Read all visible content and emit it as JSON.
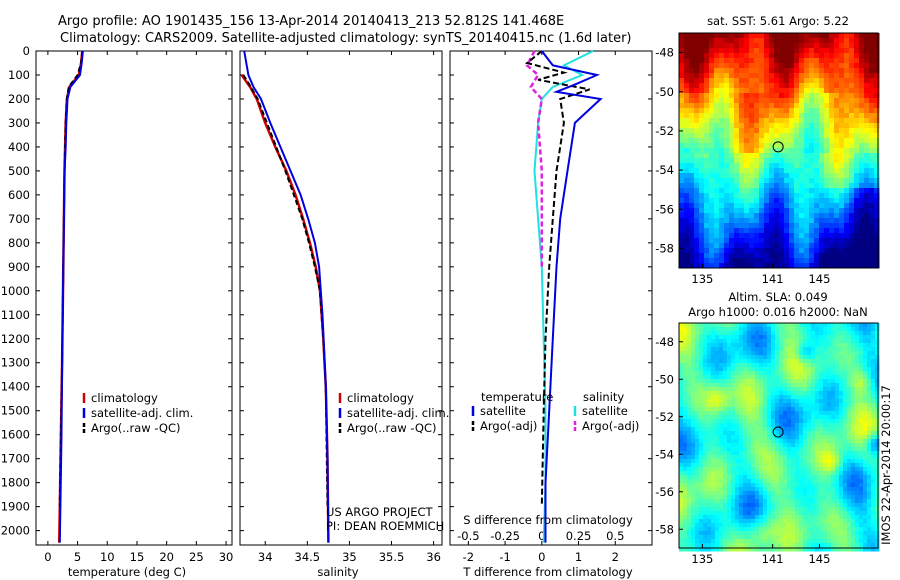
{
  "header": {
    "line1": "Argo profile: AO 1901435_156 13-Apr-2014 20140413_213 52.812S 141.468E",
    "line2": "Climatology: CARS2009. Satellite-adjusted climatology: synTS_20140415.nc (1.6d later)"
  },
  "colors": {
    "climatology": "#d00000",
    "satellite": "#0000e0",
    "argo": "#000000",
    "satellite_salinity": "#20e0e0",
    "argo_salinity": "#e020e0"
  },
  "chart_data": [
    {
      "type": "line",
      "id": "temperature",
      "xlabel": "temperature (deg C)",
      "ylabel": "",
      "xlim": [
        -2,
        31
      ],
      "ylim": [
        2060,
        0
      ],
      "xticks": [
        0,
        5,
        10,
        15,
        20,
        25,
        30
      ],
      "yticks": [
        0,
        100,
        200,
        300,
        400,
        500,
        600,
        700,
        800,
        900,
        1000,
        1100,
        1200,
        1300,
        1400,
        1500,
        1600,
        1700,
        1800,
        1900,
        2000
      ],
      "legend": [
        "climatology",
        "satellite-adj. clim.",
        "Argo(..raw -QC)"
      ],
      "series": [
        {
          "name": "climatology",
          "x": [
            5.8,
            5.6,
            5.2,
            3.6,
            3.2,
            3.0,
            2.9,
            2.8,
            2.7,
            2.6,
            2.5,
            2.4,
            2.2,
            2.0,
            1.9
          ],
          "y": [
            0,
            50,
            100,
            150,
            200,
            300,
            400,
            500,
            700,
            900,
            1100,
            1300,
            1600,
            1900,
            2050
          ]
        },
        {
          "name": "satellite-adj. clim.",
          "x": [
            5.9,
            5.7,
            5.4,
            3.8,
            3.3,
            3.1,
            3.0,
            2.8,
            2.7,
            2.6,
            2.5,
            2.4,
            2.3,
            2.1,
            2.0
          ],
          "y": [
            0,
            50,
            100,
            150,
            200,
            300,
            400,
            500,
            700,
            900,
            1100,
            1300,
            1600,
            1900,
            2050
          ]
        },
        {
          "name": "Argo(..raw -QC)",
          "x": [
            5.8,
            5.6,
            5.0,
            3.5,
            3.2,
            3.0,
            2.9,
            2.8,
            2.7,
            2.6,
            2.5,
            2.4,
            2.2,
            2.0
          ],
          "y": [
            0,
            50,
            100,
            150,
            200,
            300,
            400,
            500,
            700,
            900,
            1100,
            1300,
            1600,
            1900
          ]
        }
      ]
    },
    {
      "type": "line",
      "id": "salinity",
      "xlabel": "salinity",
      "xlim": [
        33.7,
        36.1
      ],
      "ylim": [
        2060,
        0
      ],
      "xticks": [
        34,
        34.5,
        35,
        35.5,
        36
      ],
      "legend": [
        "climatology",
        "satellite-adj. clim.",
        "Argo(..raw -QC)"
      ],
      "annotation": [
        "US ARGO PROJECT",
        "PI: DEAN ROEMMICH"
      ],
      "series": [
        {
          "name": "climatology",
          "x": [
            33.72,
            33.82,
            33.9,
            34.0,
            34.12,
            34.25,
            34.36,
            34.45,
            34.53,
            34.6,
            34.65,
            34.69,
            34.72,
            34.74,
            34.75
          ],
          "y": [
            100,
            150,
            200,
            300,
            400,
            500,
            600,
            700,
            800,
            900,
            1000,
            1200,
            1400,
            1700,
            2050
          ]
        },
        {
          "name": "satellite-adj. clim.",
          "x": [
            33.75,
            33.8,
            33.86,
            33.95,
            34.06,
            34.18,
            34.3,
            34.42,
            34.51,
            34.59,
            34.64,
            34.68,
            34.72,
            34.74,
            34.75
          ],
          "y": [
            0,
            100,
            150,
            200,
            300,
            400,
            500,
            600,
            700,
            800,
            900,
            1100,
            1400,
            1700,
            2050
          ]
        },
        {
          "name": "Argo(..raw -QC)",
          "x": [
            33.74,
            33.83,
            33.91,
            34.02,
            34.13,
            34.24,
            34.34,
            34.44,
            34.52,
            34.59,
            34.65,
            34.69,
            34.72,
            34.74
          ],
          "y": [
            100,
            150,
            200,
            300,
            400,
            500,
            600,
            700,
            800,
            900,
            1000,
            1200,
            1400,
            1900
          ]
        }
      ]
    },
    {
      "type": "line",
      "id": "difference",
      "xlabel": "T difference from climatology",
      "xlabel_top": "S difference from climatology",
      "xlim": [
        -2.5,
        3.0
      ],
      "ylim": [
        2060,
        0
      ],
      "xticks": [
        -2,
        -1,
        0,
        1,
        2
      ],
      "xtick_labels": [
        "-2",
        "-1",
        "0",
        "1",
        "2"
      ],
      "s_ticks": [
        -0.5,
        -0.25,
        0,
        0.25,
        0.5
      ],
      "s_tick_labels": [
        "-0.5",
        "-0.25",
        "0",
        "0.25",
        "0.5"
      ],
      "legend_title_left": "temperature",
      "legend_title_right": "salinity",
      "legend_left": [
        "satellite",
        "Argo(-adj)"
      ],
      "legend_right": [
        "satellite",
        "Argo(-adj)"
      ],
      "series": [
        {
          "name": "T satellite",
          "x": [
            0.0,
            0.3,
            1.5,
            0.9,
            0.4,
            1.6,
            0.9,
            0.7,
            0.5,
            0.4,
            0.3,
            0.2,
            0.1,
            0.1
          ],
          "y": [
            0,
            60,
            100,
            140,
            170,
            200,
            300,
            500,
            700,
            900,
            1200,
            1500,
            1800,
            2050
          ]
        },
        {
          "name": "T Argo(-adj)",
          "x": [
            0.0,
            -0.4,
            0.6,
            -0.1,
            1.3,
            0.5,
            0.6,
            0.4,
            0.3,
            0.2,
            0.1,
            0.05,
            0.0
          ],
          "y": [
            0,
            50,
            90,
            120,
            160,
            200,
            300,
            500,
            700,
            900,
            1200,
            1500,
            1900
          ]
        },
        {
          "name": "S satellite",
          "x": [
            1.4,
            0.6,
            1.1,
            0.3,
            0.0,
            -0.1,
            -0.2,
            -0.1,
            0.0,
            0.05,
            0.1,
            0.1,
            0.05
          ],
          "y": [
            0,
            60,
            100,
            150,
            200,
            300,
            500,
            700,
            900,
            1200,
            1500,
            1800,
            2050
          ]
        },
        {
          "name": "S Argo(-adj)",
          "x": [
            -0.2,
            -0.4,
            -0.1,
            -0.3,
            0.0,
            -0.1,
            0.0,
            0.0,
            0.0
          ],
          "y": [
            0,
            60,
            100,
            150,
            200,
            300,
            500,
            700,
            900
          ]
        }
      ]
    },
    {
      "type": "heatmap",
      "id": "sst-map",
      "title": "sat. SST: 5.61  Argo: 5.22",
      "xlim": [
        133,
        150
      ],
      "ylim": [
        -59,
        -47
      ],
      "xticks": [
        135,
        141,
        145
      ],
      "yticks": [
        -48,
        -50,
        -52,
        -54,
        -56,
        -58
      ],
      "marker": [
        141.468,
        -52.812
      ]
    },
    {
      "type": "heatmap",
      "id": "sla-map",
      "title_line1": "Altim. SLA: 0.049",
      "title_line2": "Argo h1000: 0.016 h2000: NaN",
      "xlim": [
        133,
        150
      ],
      "ylim": [
        -59,
        -47
      ],
      "xticks": [
        135,
        141,
        145
      ],
      "yticks": [
        -48,
        -50,
        -52,
        -54,
        -56,
        -58
      ],
      "marker": [
        141.468,
        -52.812
      ],
      "side_label": "IMOS 22-Apr-2014 20:00:17"
    }
  ]
}
